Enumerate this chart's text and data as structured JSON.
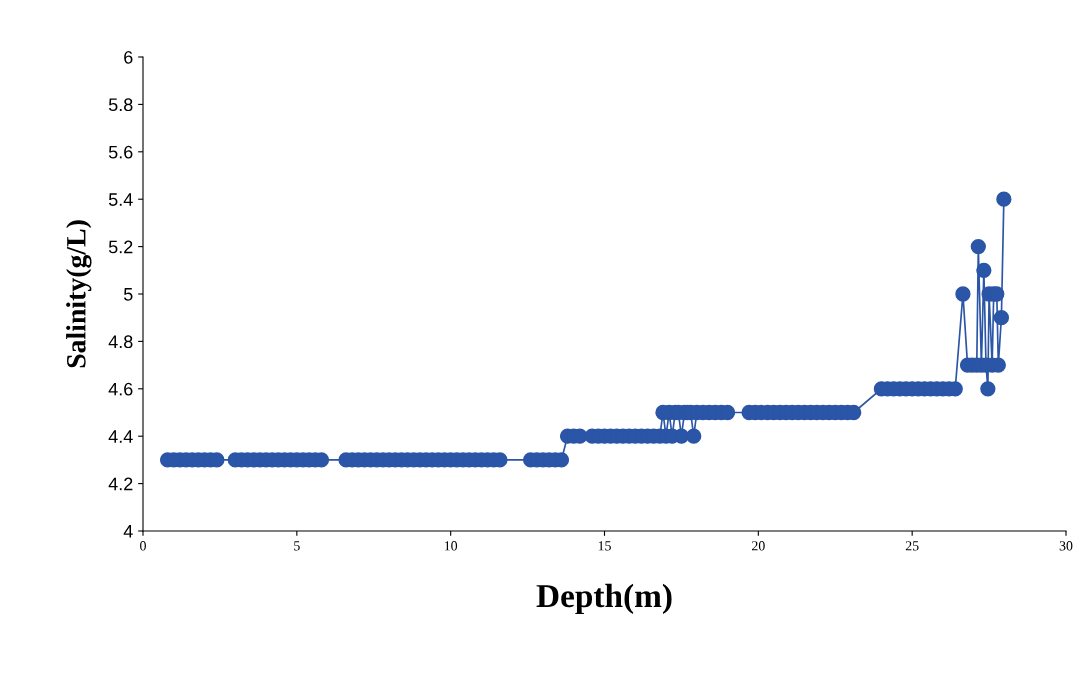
{
  "chart_data": {
    "type": "line",
    "xlabel": "Depth(m)",
    "ylabel": "Salinity(g/L)",
    "marker": "circle",
    "line_style": "solid",
    "grid": false,
    "xlim": [
      0,
      30
    ],
    "xticks": [
      0,
      5,
      10,
      15,
      20,
      25,
      30
    ],
    "ylim": [
      4,
      6
    ],
    "yticks": [
      4,
      4.2,
      4.4,
      4.6,
      4.8,
      5,
      5.2,
      5.4,
      5.6,
      5.8,
      6
    ],
    "series": [
      {
        "color": "#2b55a6",
        "x": [
          0.8,
          1.0,
          1.2,
          1.4,
          1.6,
          1.8,
          2.0,
          2.2,
          2.4,
          3.0,
          3.2,
          3.4,
          3.6,
          3.8,
          4.0,
          4.2,
          4.4,
          4.6,
          4.8,
          5.0,
          5.2,
          5.4,
          5.6,
          5.8,
          6.6,
          6.8,
          7.0,
          7.2,
          7.4,
          7.6,
          7.8,
          8.0,
          8.2,
          8.4,
          8.6,
          8.8,
          9.0,
          9.2,
          9.4,
          9.6,
          9.8,
          10.0,
          10.2,
          10.4,
          10.6,
          10.8,
          11.0,
          11.2,
          11.4,
          11.6,
          12.6,
          12.8,
          13.0,
          13.2,
          13.4,
          13.6,
          13.8,
          14.0,
          14.2,
          14.6,
          14.8,
          15.0,
          15.2,
          15.4,
          15.6,
          15.8,
          16.0,
          16.2,
          16.4,
          16.6,
          16.8,
          16.9,
          17.0,
          17.1,
          17.2,
          17.3,
          17.4,
          17.5,
          17.6,
          17.7,
          17.8,
          17.9,
          18.0,
          18.2,
          18.4,
          18.6,
          18.8,
          19.0,
          19.7,
          19.9,
          20.1,
          20.3,
          20.5,
          20.7,
          20.9,
          21.1,
          21.3,
          21.5,
          21.7,
          21.9,
          22.1,
          22.3,
          22.5,
          22.7,
          22.9,
          23.1,
          24.0,
          24.2,
          24.4,
          24.6,
          24.8,
          25.0,
          25.2,
          25.4,
          25.6,
          25.8,
          26.0,
          26.2,
          26.4,
          26.65,
          26.8,
          26.95,
          27.1,
          27.15,
          27.25,
          27.33,
          27.4,
          27.46,
          27.5,
          27.6,
          27.65,
          27.75,
          27.8,
          27.9,
          27.98
        ],
        "values": [
          4.3,
          4.3,
          4.3,
          4.3,
          4.3,
          4.3,
          4.3,
          4.3,
          4.3,
          4.3,
          4.3,
          4.3,
          4.3,
          4.3,
          4.3,
          4.3,
          4.3,
          4.3,
          4.3,
          4.3,
          4.3,
          4.3,
          4.3,
          4.3,
          4.3,
          4.3,
          4.3,
          4.3,
          4.3,
          4.3,
          4.3,
          4.3,
          4.3,
          4.3,
          4.3,
          4.3,
          4.3,
          4.3,
          4.3,
          4.3,
          4.3,
          4.3,
          4.3,
          4.3,
          4.3,
          4.3,
          4.3,
          4.3,
          4.3,
          4.3,
          4.3,
          4.3,
          4.3,
          4.3,
          4.3,
          4.3,
          4.4,
          4.4,
          4.4,
          4.4,
          4.4,
          4.4,
          4.4,
          4.4,
          4.4,
          4.4,
          4.4,
          4.4,
          4.4,
          4.4,
          4.4,
          4.5,
          4.4,
          4.5,
          4.4,
          4.5,
          4.5,
          4.4,
          4.5,
          4.5,
          4.5,
          4.4,
          4.5,
          4.5,
          4.5,
          4.5,
          4.5,
          4.5,
          4.5,
          4.5,
          4.5,
          4.5,
          4.5,
          4.5,
          4.5,
          4.5,
          4.5,
          4.5,
          4.5,
          4.5,
          4.5,
          4.5,
          4.5,
          4.5,
          4.5,
          4.5,
          4.6,
          4.6,
          4.6,
          4.6,
          4.6,
          4.6,
          4.6,
          4.6,
          4.6,
          4.6,
          4.6,
          4.6,
          4.6,
          5.0,
          4.7,
          4.7,
          4.7,
          5.2,
          4.7,
          5.1,
          4.7,
          4.6,
          5.0,
          4.7,
          5.0,
          5.0,
          4.7,
          4.9,
          5.4
        ]
      }
    ]
  }
}
